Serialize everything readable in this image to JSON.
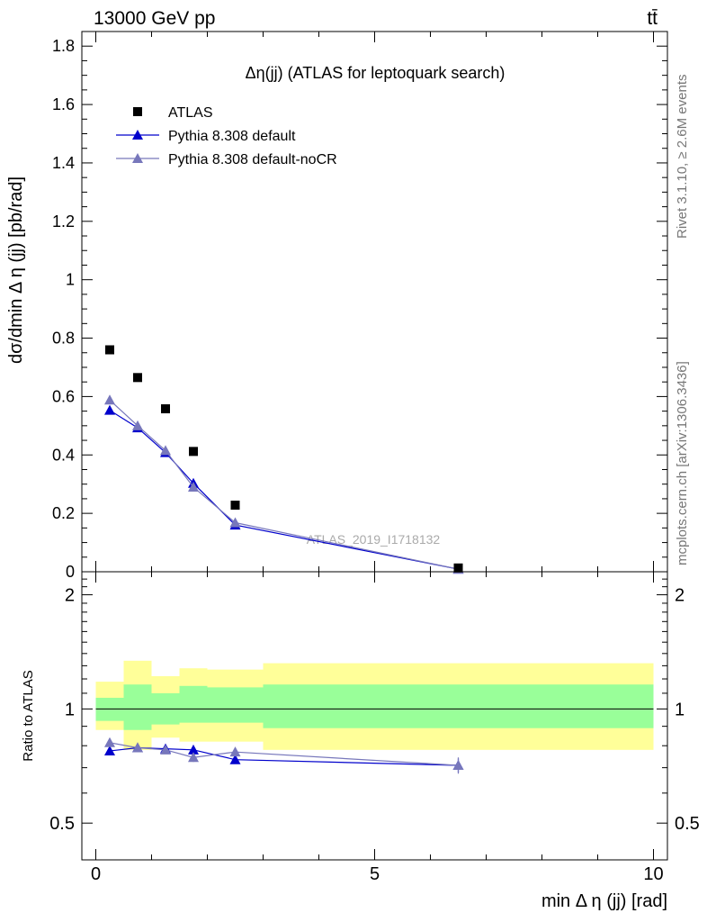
{
  "header": {
    "left": "13000 GeV pp",
    "right": "tt̄"
  },
  "side_labels": {
    "rivet": "Rivet 3.1.10, ≥ 2.6M events",
    "mcplots": "mcplots.cern.ch [arXiv:1306.3436]"
  },
  "watermark": "ATLAS_2019_I1718132",
  "chart_data": [
    {
      "type": "scatter",
      "title": "Δη(jj) (ATLAS for leptoquark search)",
      "ylabel": "dσ/dmin Δ η (jj) [pb/rad]",
      "xlabel": "",
      "xlim": [
        -0.25,
        10.25
      ],
      "ylim": [
        0,
        1.85
      ],
      "yticks": [
        0,
        0.2,
        0.4,
        0.6,
        0.8,
        1,
        1.2,
        1.4,
        1.6,
        1.8
      ],
      "ytick_labels": [
        "0",
        "0.2",
        "0.4",
        "0.6",
        "0.8",
        "1",
        "1.2",
        "1.4",
        "1.6",
        "1.8"
      ],
      "legend_position": "top-left",
      "grid": false,
      "series": [
        {
          "name": "ATLAS",
          "color": "#000000",
          "marker": "square",
          "x": [
            0.25,
            0.75,
            1.25,
            1.75,
            2.5,
            6.5
          ],
          "y": [
            0.76,
            0.665,
            0.558,
            0.412,
            0.228,
            0.013
          ],
          "xerr": [
            0.25,
            0.25,
            0.25,
            0.25,
            0.5,
            3.5
          ]
        },
        {
          "name": "Pythia 8.308 default",
          "color": "#0000cc",
          "marker": "triangle",
          "x": [
            0.25,
            0.75,
            1.25,
            1.75,
            2.5,
            6.5
          ],
          "y": [
            0.553,
            0.493,
            0.408,
            0.303,
            0.16,
            0.009
          ]
        },
        {
          "name": "Pythia 8.308 default-noCR",
          "color": "#7777bb",
          "marker": "triangle",
          "x": [
            0.25,
            0.75,
            1.25,
            1.75,
            2.5,
            6.5
          ],
          "y": [
            0.588,
            0.5,
            0.415,
            0.29,
            0.168,
            0.009
          ]
        }
      ]
    },
    {
      "type": "scatter",
      "title": "",
      "ylabel": "Ratio to ATLAS",
      "xlabel": "min Δ η (jj) [rad]",
      "xlim": [
        -0.25,
        10.25
      ],
      "ylim": [
        0.4,
        2.3
      ],
      "yticks": [
        0.5,
        1,
        2
      ],
      "ytick_labels": [
        "0.5",
        "1",
        "2"
      ],
      "xticks": [
        0,
        5,
        10
      ],
      "xtick_labels": [
        "0",
        "5",
        "10"
      ],
      "reference_line": 1,
      "bands": [
        {
          "x0": 0.0,
          "x1": 0.5,
          "inner": [
            0.93,
            1.07
          ],
          "outer": [
            0.88,
            1.18
          ]
        },
        {
          "x0": 0.5,
          "x1": 1.0,
          "inner": [
            0.88,
            1.16
          ],
          "outer": [
            0.78,
            1.34
          ]
        },
        {
          "x0": 1.0,
          "x1": 1.5,
          "inner": [
            0.91,
            1.1
          ],
          "outer": [
            0.84,
            1.22
          ]
        },
        {
          "x0": 1.5,
          "x1": 2.0,
          "inner": [
            0.92,
            1.15
          ],
          "outer": [
            0.82,
            1.28
          ]
        },
        {
          "x0": 2.0,
          "x1": 3.0,
          "inner": [
            0.92,
            1.14
          ],
          "outer": [
            0.82,
            1.27
          ]
        },
        {
          "x0": 3.0,
          "x1": 10.0,
          "inner": [
            0.89,
            1.16
          ],
          "outer": [
            0.78,
            1.32
          ]
        }
      ],
      "band_colors": {
        "inner": "#99ff99",
        "outer": "#ffff99"
      },
      "series": [
        {
          "name": "Pythia 8.308 default",
          "color": "#0000cc",
          "marker": "triangle",
          "x": [
            0.25,
            0.75,
            1.25,
            1.75,
            2.5,
            6.5
          ],
          "y": [
            0.775,
            0.79,
            0.785,
            0.78,
            0.735,
            0.71
          ],
          "yerr": [
            0.012,
            0.012,
            0.012,
            0.02,
            0.015,
            0.03
          ]
        },
        {
          "name": "Pythia 8.308 default-noCR",
          "color": "#7777bb",
          "marker": "triangle",
          "x": [
            0.25,
            0.75,
            1.25,
            1.75,
            2.5,
            6.5
          ],
          "y": [
            0.815,
            0.79,
            0.78,
            0.745,
            0.77,
            0.71
          ],
          "yerr": [
            0.012,
            0.012,
            0.012,
            0.02,
            0.02,
            0.035
          ]
        }
      ]
    }
  ]
}
